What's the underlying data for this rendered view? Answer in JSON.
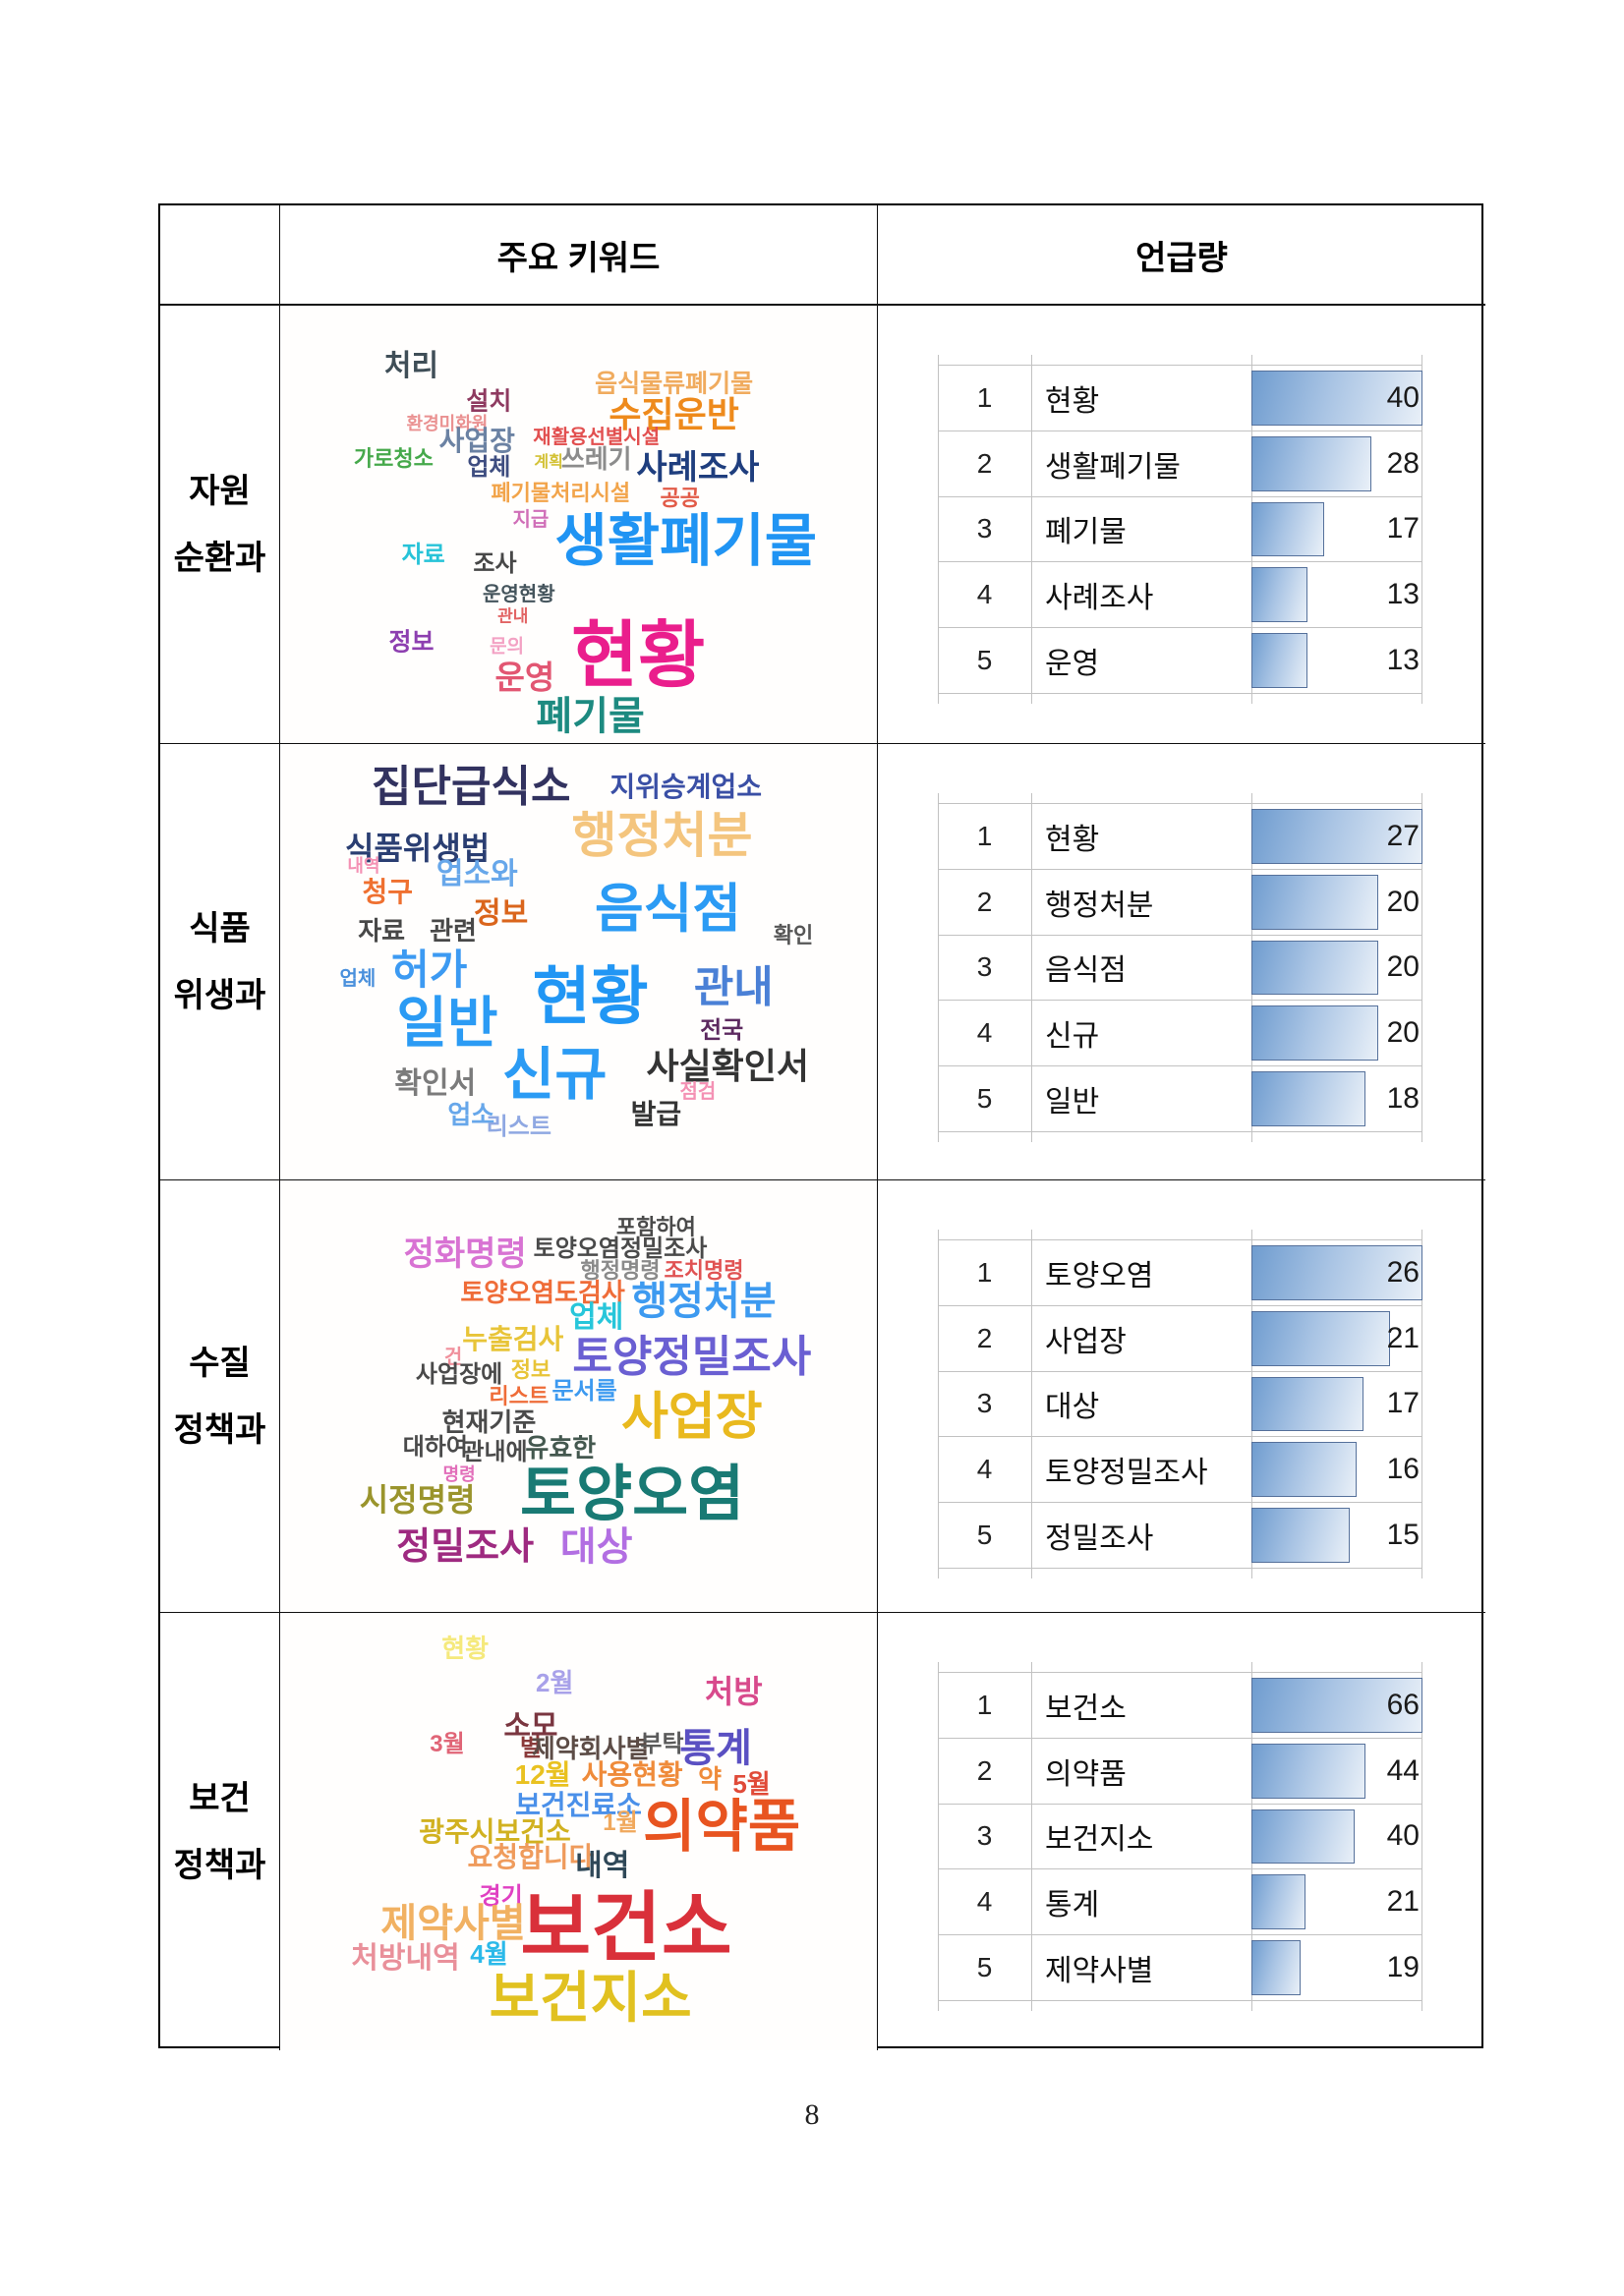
{
  "page": {
    "number": "8"
  },
  "colors": {
    "bar_fill_start": "#6f9ccf",
    "bar_fill_end": "#e9f0f8",
    "bar_border": "#56719b",
    "gridline": "#c2c2c2",
    "table_border": "#000000"
  },
  "table": {
    "header": {
      "col_keywords": "주요 키워드",
      "col_mentions": "언급량"
    },
    "rows": [
      {
        "dept_line1": "자원",
        "dept_line2": "순환과",
        "cloud": [
          {
            "t": "처리",
            "x": 22,
            "y": 14,
            "s": 30,
            "c": "#3f4e57"
          },
          {
            "t": "음식물류폐기물",
            "x": 66,
            "y": 18,
            "s": 25,
            "c": "#f0ab5e"
          },
          {
            "t": "수집운반",
            "x": 66,
            "y": 25,
            "s": 36,
            "c": "#ee8a1c"
          },
          {
            "t": "설치",
            "x": 35,
            "y": 22,
            "s": 25,
            "c": "#8e3a60"
          },
          {
            "t": "환경미화원",
            "x": 28,
            "y": 27,
            "s": 18,
            "c": "#ea9191"
          },
          {
            "t": "사업장",
            "x": 33,
            "y": 31,
            "s": 28,
            "c": "#6b82a3"
          },
          {
            "t": "재활용선별시설",
            "x": 53,
            "y": 30,
            "s": 20,
            "c": "#e25050"
          },
          {
            "t": "가로청소",
            "x": 19,
            "y": 35,
            "s": 22,
            "c": "#46a94b"
          },
          {
            "t": "업체",
            "x": 35,
            "y": 37,
            "s": 24,
            "c": "#3e4d80"
          },
          {
            "t": "계획",
            "x": 45,
            "y": 36,
            "s": 16,
            "c": "#d3c135"
          },
          {
            "t": "쓰레기",
            "x": 53,
            "y": 35,
            "s": 26,
            "c": "#8c8c8c"
          },
          {
            "t": "사례조사",
            "x": 70,
            "y": 37,
            "s": 34,
            "c": "#1f3e7e"
          },
          {
            "t": "폐기물처리시설",
            "x": 47,
            "y": 43,
            "s": 22,
            "c": "#f2a44a"
          },
          {
            "t": "공공",
            "x": 67,
            "y": 44,
            "s": 22,
            "c": "#e25b48"
          },
          {
            "t": "지급",
            "x": 42,
            "y": 49,
            "s": 20,
            "c": "#d06fb8"
          },
          {
            "t": "생활폐기물",
            "x": 68,
            "y": 54,
            "s": 58,
            "c": "#2094f3"
          },
          {
            "t": "자료",
            "x": 24,
            "y": 57,
            "s": 24,
            "c": "#27c3d8"
          },
          {
            "t": "조사",
            "x": 36,
            "y": 59,
            "s": 24,
            "c": "#474747"
          },
          {
            "t": "운영현황",
            "x": 40,
            "y": 66,
            "s": 20,
            "c": "#44545c"
          },
          {
            "t": "관내",
            "x": 39,
            "y": 71,
            "s": 17,
            "c": "#e26464"
          },
          {
            "t": "정보",
            "x": 22,
            "y": 77,
            "s": 25,
            "c": "#8d3fb0"
          },
          {
            "t": "문의",
            "x": 38,
            "y": 78,
            "s": 19,
            "c": "#f3a2c4"
          },
          {
            "t": "현황",
            "x": 60,
            "y": 80,
            "s": 74,
            "c": "#ea1e8c"
          },
          {
            "t": "운영",
            "x": 41,
            "y": 85,
            "s": 33,
            "c": "#e25672"
          },
          {
            "t": "폐기물",
            "x": 52,
            "y": 94,
            "s": 40,
            "c": "#1d8a80"
          }
        ],
        "chart": {
          "type": "bar",
          "max": 40,
          "items": [
            {
              "rank": "1",
              "label": "현황",
              "value": 40
            },
            {
              "rank": "2",
              "label": "생활폐기물",
              "value": 28
            },
            {
              "rank": "3",
              "label": "폐기물",
              "value": 17
            },
            {
              "rank": "4",
              "label": "사례조사",
              "value": 13
            },
            {
              "rank": "5",
              "label": "운영",
              "value": 13
            }
          ]
        }
      },
      {
        "dept_line1": "식품",
        "dept_line2": "위생과",
        "cloud": [
          {
            "t": "집단급식소",
            "x": 32,
            "y": 10,
            "s": 44,
            "c": "#32325f"
          },
          {
            "t": "지위승계업소",
            "x": 68,
            "y": 10,
            "s": 28,
            "c": "#3a4fa5"
          },
          {
            "t": "식품위생법",
            "x": 23,
            "y": 24,
            "s": 32,
            "c": "#2a3e72"
          },
          {
            "t": "행정처분",
            "x": 64,
            "y": 21,
            "s": 50,
            "c": "#f4c57e"
          },
          {
            "t": "내역",
            "x": 14,
            "y": 28,
            "s": 18,
            "c": "#f491b4"
          },
          {
            "t": "업소와",
            "x": 33,
            "y": 30,
            "s": 30,
            "c": "#67a7ea"
          },
          {
            "t": "청구",
            "x": 18,
            "y": 34,
            "s": 28,
            "c": "#ef7030"
          },
          {
            "t": "정보",
            "x": 37,
            "y": 39,
            "s": 30,
            "c": "#da651c"
          },
          {
            "t": "음식점",
            "x": 65,
            "y": 38,
            "s": 54,
            "c": "#2b9bf4"
          },
          {
            "t": "확인",
            "x": 86,
            "y": 44,
            "s": 22,
            "c": "#565656"
          },
          {
            "t": "자료",
            "x": 17,
            "y": 43,
            "s": 26,
            "c": "#484848"
          },
          {
            "t": "관련",
            "x": 29,
            "y": 43,
            "s": 26,
            "c": "#484848"
          },
          {
            "t": "업체",
            "x": 13,
            "y": 54,
            "s": 20,
            "c": "#4a90dc"
          },
          {
            "t": "허가",
            "x": 25,
            "y": 52,
            "s": 42,
            "c": "#3c9af2"
          },
          {
            "t": "현황",
            "x": 52,
            "y": 58,
            "s": 64,
            "c": "#2196f4"
          },
          {
            "t": "관내",
            "x": 76,
            "y": 56,
            "s": 44,
            "c": "#4a80d6"
          },
          {
            "t": "일반",
            "x": 28,
            "y": 64,
            "s": 56,
            "c": "#2b9bf4"
          },
          {
            "t": "전국",
            "x": 74,
            "y": 66,
            "s": 24,
            "c": "#5d2a60"
          },
          {
            "t": "신규",
            "x": 46,
            "y": 76,
            "s": 58,
            "c": "#2b9bf4"
          },
          {
            "t": "사실확인서",
            "x": 75,
            "y": 74,
            "s": 36,
            "c": "#343434"
          },
          {
            "t": "확인서",
            "x": 26,
            "y": 78,
            "s": 30,
            "c": "#7b7b7b"
          },
          {
            "t": "점검",
            "x": 70,
            "y": 80,
            "s": 20,
            "c": "#f491b4"
          },
          {
            "t": "업소",
            "x": 32,
            "y": 85,
            "s": 26,
            "c": "#67a7ea"
          },
          {
            "t": "발급",
            "x": 63,
            "y": 85,
            "s": 28,
            "c": "#343434"
          },
          {
            "t": "리스트",
            "x": 40,
            "y": 88,
            "s": 24,
            "c": "#8fa8e2"
          }
        ],
        "chart": {
          "type": "bar",
          "max": 27,
          "items": [
            {
              "rank": "1",
              "label": "현황",
              "value": 27
            },
            {
              "rank": "2",
              "label": "행정처분",
              "value": 20
            },
            {
              "rank": "3",
              "label": "음식점",
              "value": 20
            },
            {
              "rank": "4",
              "label": "신규",
              "value": 20
            },
            {
              "rank": "5",
              "label": "일반",
              "value": 18
            }
          ]
        }
      },
      {
        "dept_line1": "수질",
        "dept_line2": "정책과",
        "cloud": [
          {
            "t": "포함하여",
            "x": 63,
            "y": 11,
            "s": 22,
            "c": "#4a4a4a"
          },
          {
            "t": "정화명령",
            "x": 31,
            "y": 17,
            "s": 34,
            "c": "#d873d3"
          },
          {
            "t": "토양오염정밀조사",
            "x": 57,
            "y": 16,
            "s": 24,
            "c": "#4a4a4a"
          },
          {
            "t": "행정명령",
            "x": 57,
            "y": 21,
            "s": 22,
            "c": "#8a8a8a"
          },
          {
            "t": "조치명령",
            "x": 71,
            "y": 21,
            "s": 22,
            "c": "#e05353"
          },
          {
            "t": "토양오염도검사",
            "x": 44,
            "y": 26,
            "s": 26,
            "c": "#ef6c38"
          },
          {
            "t": "행정처분",
            "x": 71,
            "y": 28,
            "s": 40,
            "c": "#3d9af0"
          },
          {
            "t": "업체",
            "x": 53,
            "y": 32,
            "s": 30,
            "c": "#27c6da"
          },
          {
            "t": "누출검사",
            "x": 39,
            "y": 37,
            "s": 28,
            "c": "#e8c438"
          },
          {
            "t": "건",
            "x": 29,
            "y": 41,
            "s": 20,
            "c": "#f0909c"
          },
          {
            "t": "정보",
            "x": 42,
            "y": 44,
            "s": 22,
            "c": "#e8c438"
          },
          {
            "t": "토양정밀조사",
            "x": 69,
            "y": 41,
            "s": 44,
            "c": "#6a5fd2"
          },
          {
            "t": "사업장에",
            "x": 30,
            "y": 45,
            "s": 24,
            "c": "#4a4a4a"
          },
          {
            "t": "리스트",
            "x": 40,
            "y": 50,
            "s": 22,
            "c": "#ef6c38"
          },
          {
            "t": "문서를",
            "x": 51,
            "y": 49,
            "s": 24,
            "c": "#3d9af0"
          },
          {
            "t": "사업장",
            "x": 69,
            "y": 55,
            "s": 52,
            "c": "#e9b91e"
          },
          {
            "t": "현재기준",
            "x": 35,
            "y": 56,
            "s": 26,
            "c": "#4a4a4a"
          },
          {
            "t": "대하여",
            "x": 26,
            "y": 62,
            "s": 24,
            "c": "#4a4a4a"
          },
          {
            "t": "관내에",
            "x": 36,
            "y": 63,
            "s": 24,
            "c": "#4a4a4a"
          },
          {
            "t": "유효한",
            "x": 47,
            "y": 62,
            "s": 26,
            "c": "#44584f"
          },
          {
            "t": "명령",
            "x": 30,
            "y": 68,
            "s": 18,
            "c": "#e26fba"
          },
          {
            "t": "토양오염",
            "x": 59,
            "y": 73,
            "s": 62,
            "c": "#197a74"
          },
          {
            "t": "시정명령",
            "x": 23,
            "y": 74,
            "s": 32,
            "c": "#9a942c"
          },
          {
            "t": "정밀조사",
            "x": 31,
            "y": 85,
            "s": 38,
            "c": "#9e2a80"
          },
          {
            "t": "대상",
            "x": 53,
            "y": 85,
            "s": 40,
            "c": "#b26fe2"
          }
        ],
        "chart": {
          "type": "bar",
          "max": 26,
          "items": [
            {
              "rank": "1",
              "label": "토양오염",
              "value": 26
            },
            {
              "rank": "2",
              "label": "사업장",
              "value": 21
            },
            {
              "rank": "3",
              "label": "대상",
              "value": 17
            },
            {
              "rank": "4",
              "label": "토양정밀조사",
              "value": 16
            },
            {
              "rank": "5",
              "label": "정밀조사",
              "value": 15
            }
          ]
        }
      },
      {
        "dept_line1": "보건",
        "dept_line2": "정책과",
        "cloud": [
          {
            "t": "현황",
            "x": 31,
            "y": 8,
            "s": 26,
            "c": "#f5e97c"
          },
          {
            "t": "2월",
            "x": 46,
            "y": 16,
            "s": 26,
            "c": "#a8a1e9"
          },
          {
            "t": "처방",
            "x": 76,
            "y": 18,
            "s": 32,
            "c": "#d84a8c"
          },
          {
            "t": "소모",
            "x": 42,
            "y": 26,
            "s": 30,
            "c": "#7a3640"
          },
          {
            "t": "3월",
            "x": 28,
            "y": 30,
            "s": 24,
            "c": "#e06476"
          },
          {
            "t": "별",
            "x": 42,
            "y": 31,
            "s": 24,
            "c": "#8a3a3a"
          },
          {
            "t": "제약회사별",
            "x": 52,
            "y": 31,
            "s": 26,
            "c": "#5c4c46"
          },
          {
            "t": "부탁",
            "x": 64,
            "y": 30,
            "s": 24,
            "c": "#5a5a5a"
          },
          {
            "t": "통계",
            "x": 73,
            "y": 31,
            "s": 40,
            "c": "#5a50c2"
          },
          {
            "t": "12월",
            "x": 44,
            "y": 37,
            "s": 28,
            "c": "#e9c120"
          },
          {
            "t": "사용현황",
            "x": 59,
            "y": 37,
            "s": 28,
            "c": "#ef8b3a"
          },
          {
            "t": "약",
            "x": 72,
            "y": 38,
            "s": 26,
            "c": "#ef8b3a"
          },
          {
            "t": "5월",
            "x": 79,
            "y": 39,
            "s": 26,
            "c": "#e04a38"
          },
          {
            "t": "보건진료소",
            "x": 50,
            "y": 44,
            "s": 28,
            "c": "#4a90e9"
          },
          {
            "t": "1월",
            "x": 57,
            "y": 48,
            "s": 24,
            "c": "#f0a85c"
          },
          {
            "t": "의약품",
            "x": 74,
            "y": 49,
            "s": 58,
            "c": "#e85420"
          },
          {
            "t": "광주시보건소",
            "x": 36,
            "y": 50,
            "s": 28,
            "c": "#d1b120"
          },
          {
            "t": "요청합니다",
            "x": 42,
            "y": 56,
            "s": 28,
            "c": "#ef9b5c"
          },
          {
            "t": "내역",
            "x": 54,
            "y": 58,
            "s": 30,
            "c": "#2f4858"
          },
          {
            "t": "경기",
            "x": 37,
            "y": 65,
            "s": 24,
            "c": "#e040c2"
          },
          {
            "t": "제약사별",
            "x": 29,
            "y": 71,
            "s": 40,
            "c": "#f1b162"
          },
          {
            "t": "보건소",
            "x": 58,
            "y": 72,
            "s": 78,
            "c": "#d9303a"
          },
          {
            "t": "처방내역",
            "x": 21,
            "y": 79,
            "s": 30,
            "c": "#e9909a"
          },
          {
            "t": "4월",
            "x": 35,
            "y": 78,
            "s": 26,
            "c": "#2bb9e9"
          },
          {
            "t": "보건지소",
            "x": 52,
            "y": 88,
            "s": 56,
            "c": "#e1c120"
          }
        ],
        "chart": {
          "type": "bar",
          "max": 66,
          "items": [
            {
              "rank": "1",
              "label": "보건소",
              "value": 66
            },
            {
              "rank": "2",
              "label": "의약품",
              "value": 44
            },
            {
              "rank": "3",
              "label": "보건지소",
              "value": 40
            },
            {
              "rank": "4",
              "label": "통계",
              "value": 21
            },
            {
              "rank": "5",
              "label": "제약사별",
              "value": 19
            }
          ]
        }
      }
    ]
  },
  "chart_data": [
    {
      "type": "bar",
      "title": "자원순환과 언급량",
      "categories": [
        "현황",
        "생활폐기물",
        "폐기물",
        "사례조사",
        "운영"
      ],
      "values": [
        40,
        28,
        17,
        13,
        13
      ]
    },
    {
      "type": "bar",
      "title": "식품위생과 언급량",
      "categories": [
        "현황",
        "행정처분",
        "음식점",
        "신규",
        "일반"
      ],
      "values": [
        27,
        20,
        20,
        20,
        18
      ]
    },
    {
      "type": "bar",
      "title": "수질정책과 언급량",
      "categories": [
        "토양오염",
        "사업장",
        "대상",
        "토양정밀조사",
        "정밀조사"
      ],
      "values": [
        26,
        21,
        17,
        16,
        15
      ]
    },
    {
      "type": "bar",
      "title": "보건정책과 언급량",
      "categories": [
        "보건소",
        "의약품",
        "보건지소",
        "통계",
        "제약사별"
      ],
      "values": [
        66,
        44,
        40,
        21,
        19
      ]
    }
  ]
}
